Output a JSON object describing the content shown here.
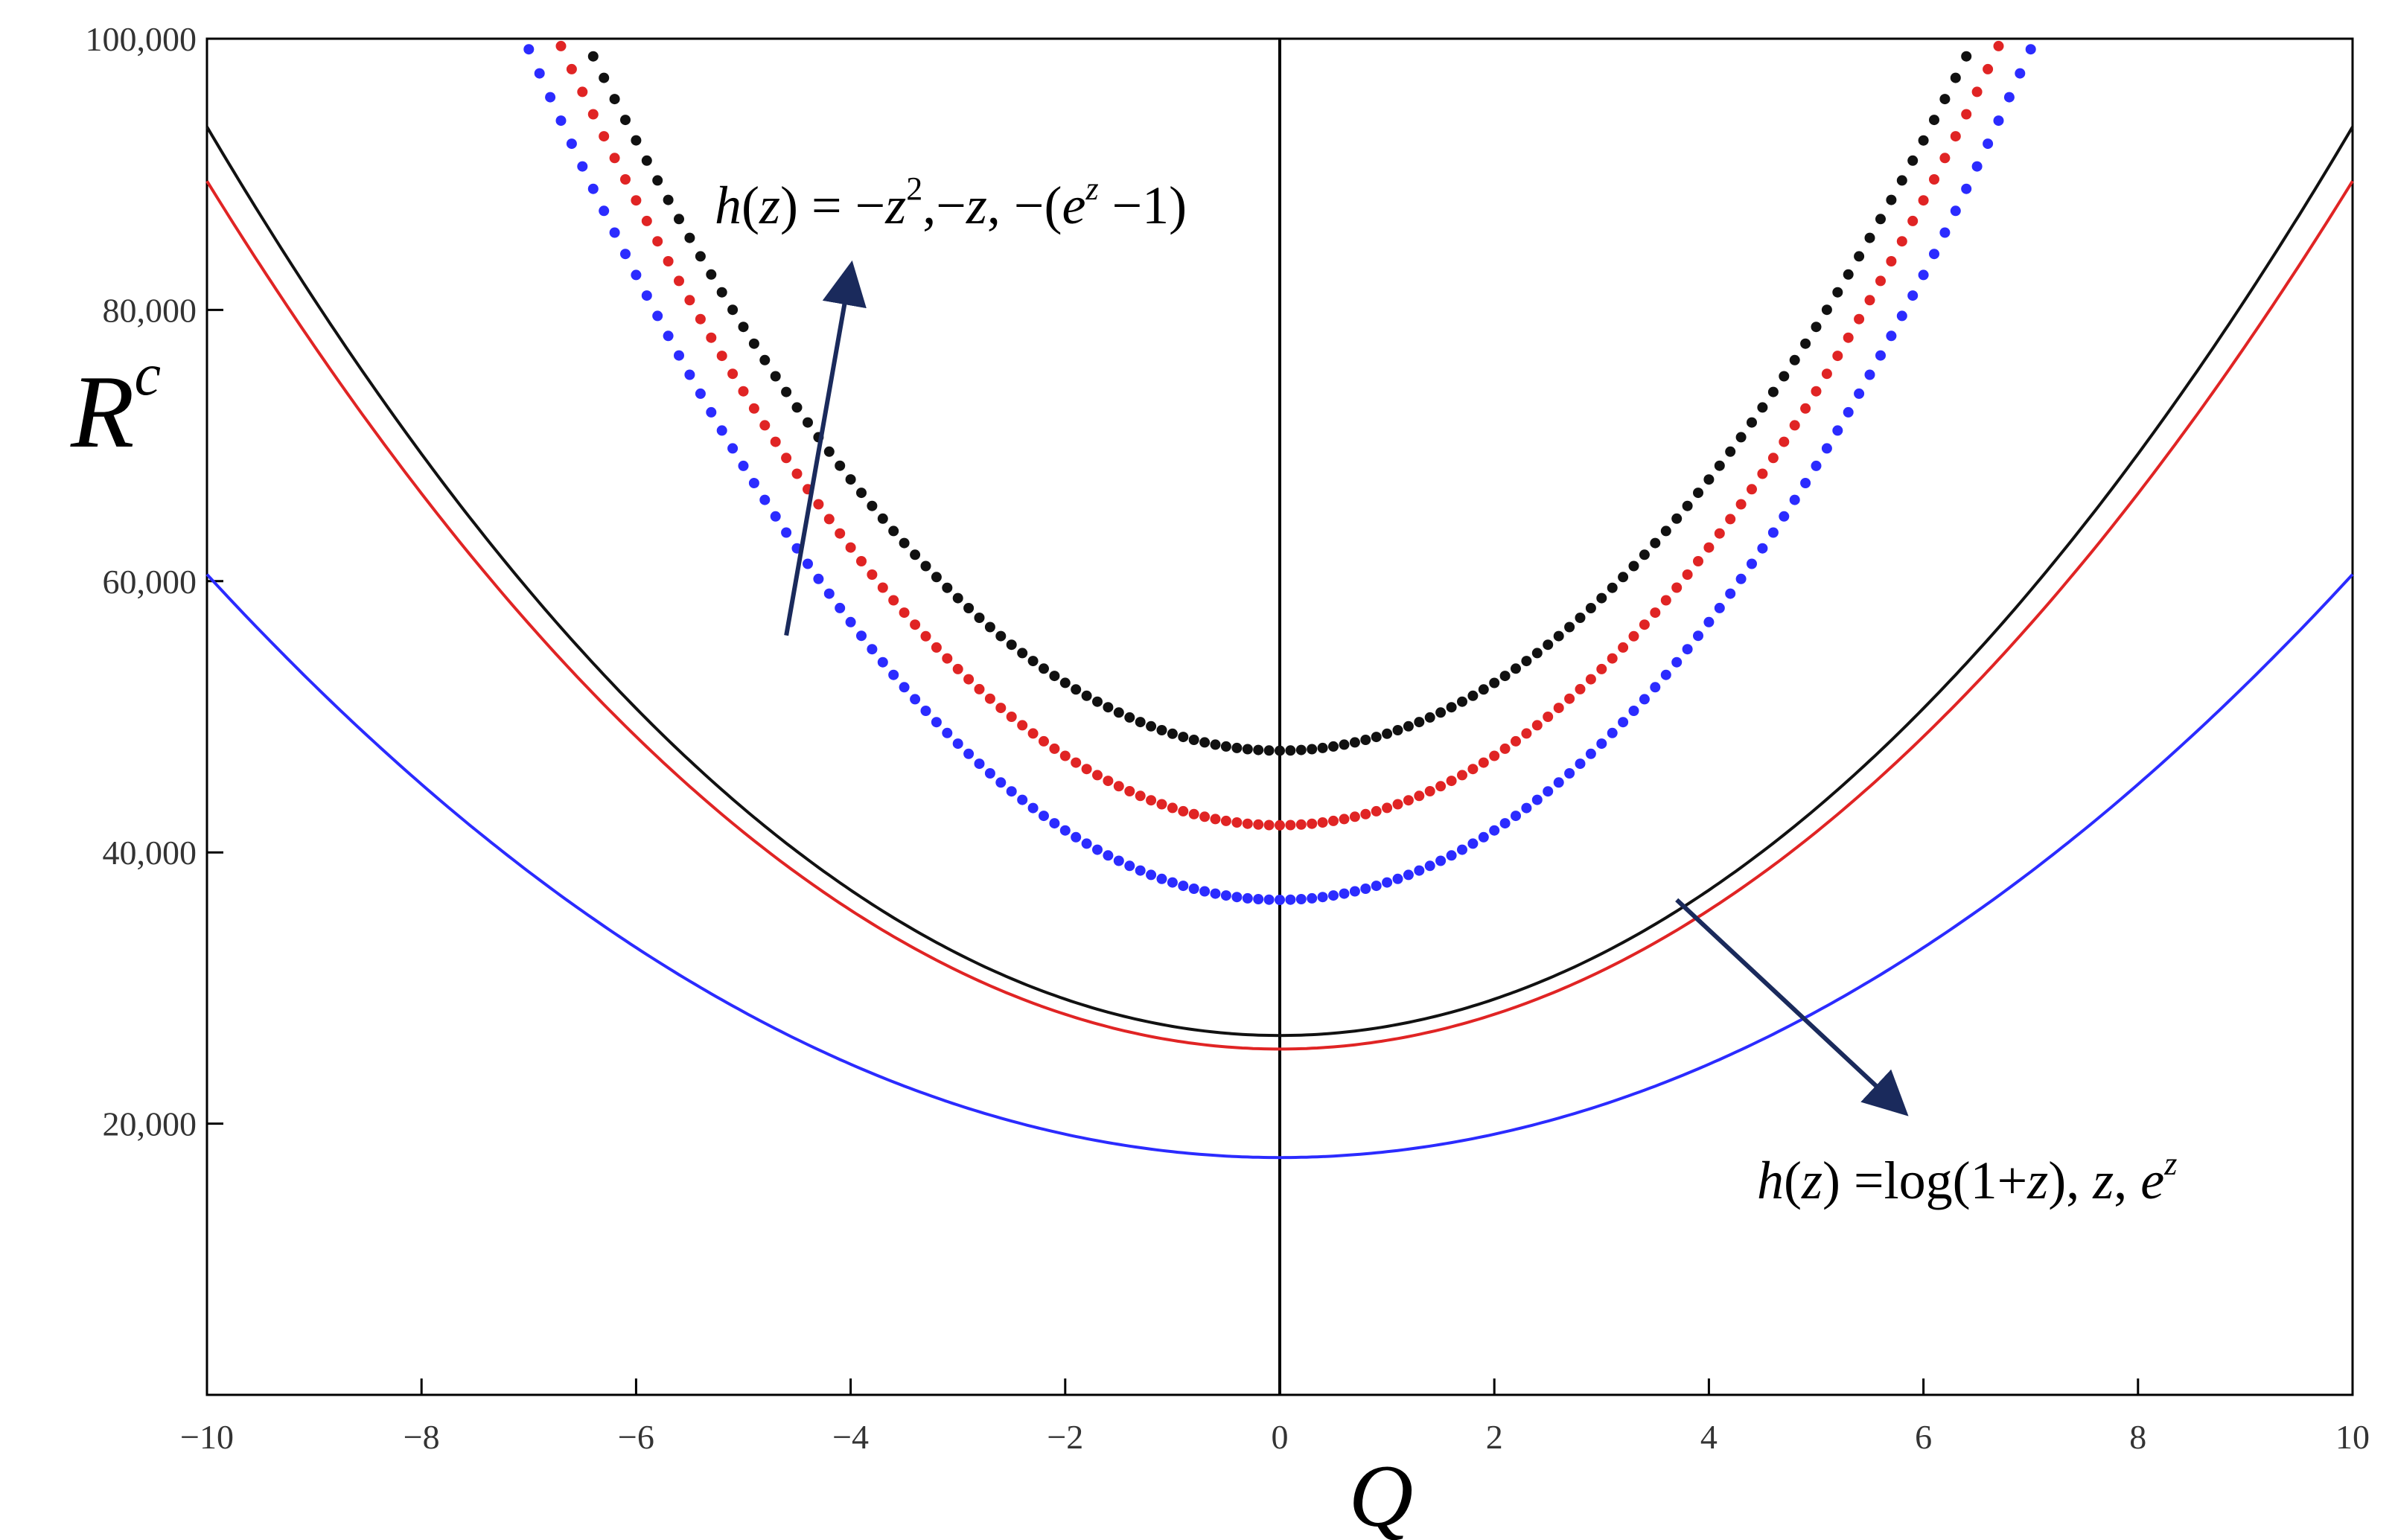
{
  "chart_data": {
    "type": "line",
    "xlabel": "Q",
    "ylabel": "R",
    "ylabel_superscript": "c",
    "xlim": [
      -10,
      10
    ],
    "ylim": [
      0,
      100000
    ],
    "x_ticks": [
      -10,
      -8,
      -6,
      -4,
      -2,
      0,
      2,
      4,
      6,
      8,
      10
    ],
    "x_tick_labels": [
      "−10",
      "−8",
      "−6",
      "−4",
      "−2",
      "0",
      "2",
      "4",
      "6",
      "8",
      "10"
    ],
    "y_ticks": [
      20000,
      40000,
      60000,
      80000,
      100000
    ],
    "y_tick_labels": [
      "20,000",
      "40,000",
      "60,000",
      "80,000",
      "100,000"
    ],
    "grid": false,
    "colors": {
      "black": "#111111",
      "red": "#e02424",
      "blue": "#2b2bff",
      "arrow": "#1a2a5c"
    },
    "series": [
      {
        "style": "dotted",
        "color": "black",
        "min": 47500,
        "k": 1250,
        "q": [
          -10,
          10
        ]
      },
      {
        "style": "dotted",
        "color": "red",
        "min": 42000,
        "k": 1280,
        "q": [
          -10,
          10
        ]
      },
      {
        "style": "dotted",
        "color": "blue",
        "min": 36500,
        "k": 1280,
        "q": [
          -10,
          10
        ]
      },
      {
        "style": "solid",
        "color": "black",
        "min": 26500,
        "k": 670,
        "q": [
          -10,
          10
        ]
      },
      {
        "style": "solid",
        "color": "red",
        "min": 25500,
        "k": 640,
        "q": [
          -10,
          10
        ]
      },
      {
        "style": "solid",
        "color": "blue",
        "min": 17500,
        "k": 430,
        "q": [
          -10,
          10
        ]
      }
    ],
    "annotations": [
      {
        "id": "upper",
        "parts": [
          {
            "t": "h",
            "italic": true
          },
          {
            "t": "("
          },
          {
            "t": "z",
            "italic": true
          },
          {
            "t": ") = −"
          },
          {
            "t": "z",
            "italic": true
          },
          {
            "t": "2",
            "sup": true
          },
          {
            "t": ",−"
          },
          {
            "t": "z",
            "italic": true
          },
          {
            "t": ", −("
          },
          {
            "t": "e",
            "italic": true
          },
          {
            "t": "z",
            "italic": true,
            "sup": true
          },
          {
            "t": " −1)"
          }
        ],
        "arrow": {
          "from": [
            -4.6,
            56000
          ],
          "to": [
            -4.0,
            83000
          ]
        }
      },
      {
        "id": "lower",
        "parts": [
          {
            "t": "h",
            "italic": true
          },
          {
            "t": "("
          },
          {
            "t": "z",
            "italic": true
          },
          {
            "t": ") =log(1+"
          },
          {
            "t": "z",
            "italic": true
          },
          {
            "t": "), "
          },
          {
            "t": "z",
            "italic": true
          },
          {
            "t": ", "
          },
          {
            "t": "e",
            "italic": true
          },
          {
            "t": "z",
            "italic": true,
            "sup": true
          }
        ],
        "arrow": {
          "from": [
            3.7,
            36500
          ],
          "to": [
            5.8,
            21000
          ]
        }
      }
    ]
  }
}
